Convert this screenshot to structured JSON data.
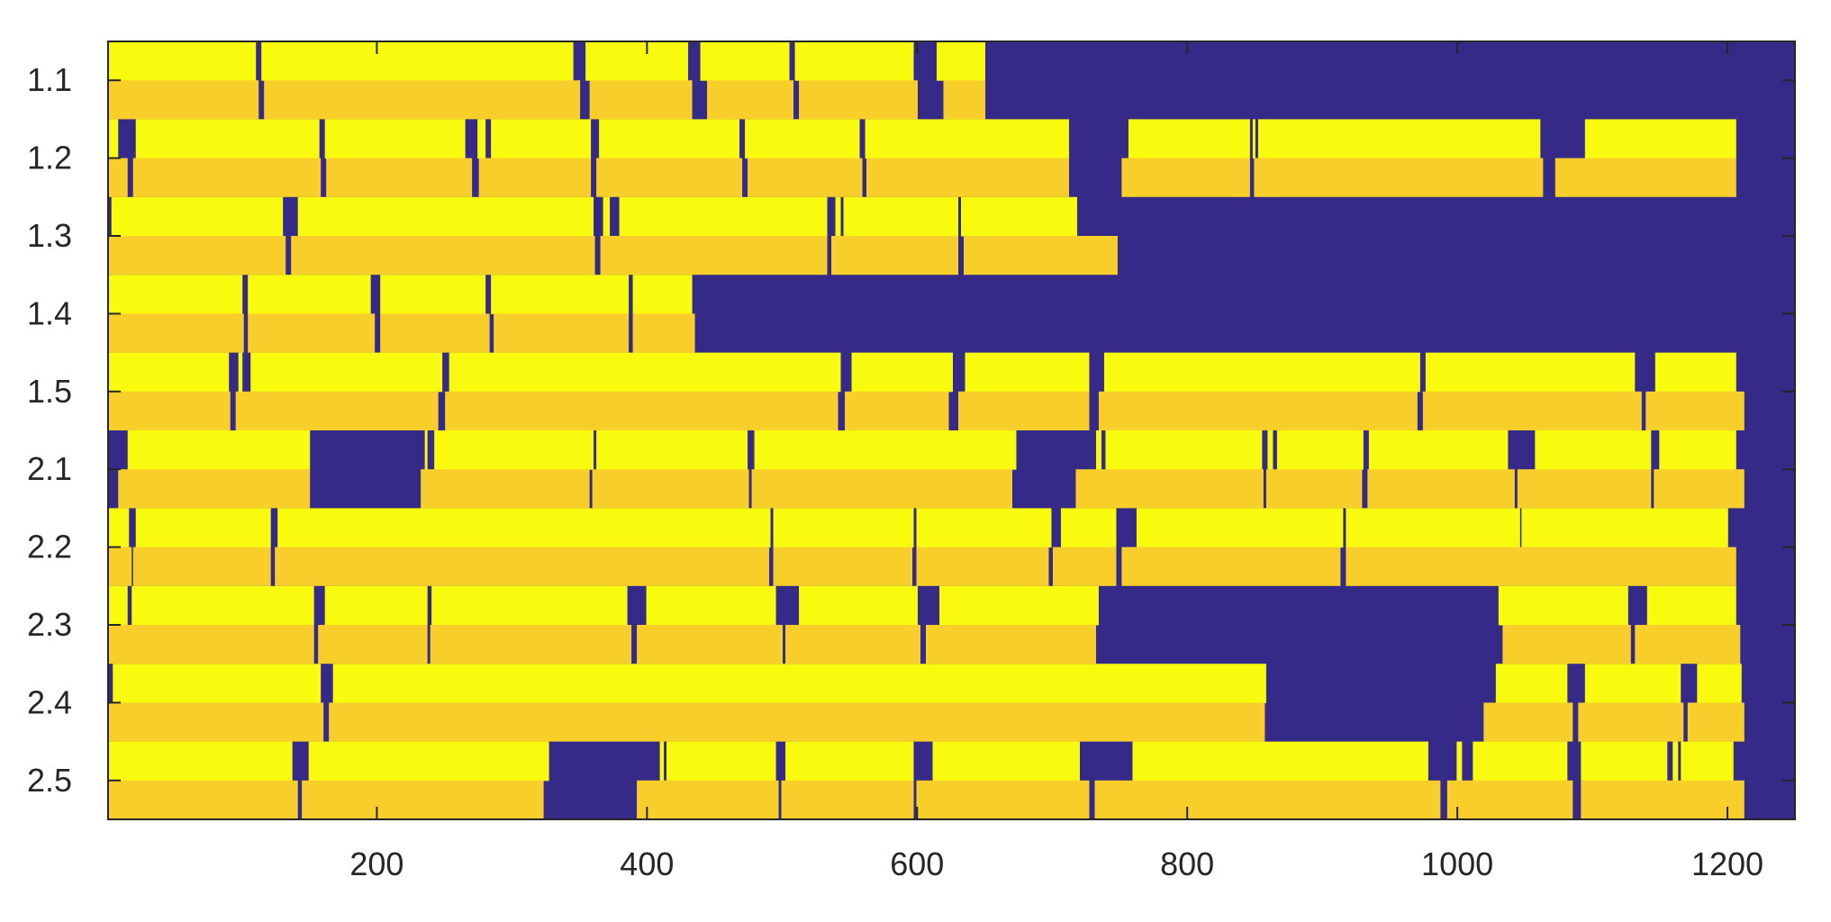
{
  "chart_data": {
    "type": "heatmap",
    "title": "",
    "xlabel": "",
    "ylabel": "",
    "xlim": [
      1,
      1250
    ],
    "x_ticks": [
      200,
      400,
      600,
      800,
      1000,
      1200
    ],
    "x_tick_labels": [
      "200",
      "400",
      "600",
      "800",
      "1000",
      "1200"
    ],
    "y_tick_labels": [
      "1.1",
      "1.2",
      "1.3",
      "1.4",
      "1.5",
      "2.1",
      "2.2",
      "2.3",
      "2.4",
      "2.5"
    ],
    "grid": false,
    "legend": "none",
    "colors": {
      "background": "#352a87",
      "upper_band": "#f9fb0e",
      "lower_band": "#f8cf2a",
      "axis": "#262626"
    },
    "rows": [
      {
        "label": "1.1",
        "upper": [
          [
            1,
            110
          ],
          [
            115,
            345
          ],
          [
            355,
            430
          ],
          [
            440,
            505
          ],
          [
            510,
            597
          ],
          [
            615,
            650
          ]
        ],
        "lower": [
          [
            1,
            112
          ],
          [
            117,
            350
          ],
          [
            358,
            433
          ],
          [
            445,
            508
          ],
          [
            513,
            600
          ],
          [
            620,
            650
          ]
        ]
      },
      {
        "label": "1.2",
        "upper": [
          [
            1,
            8
          ],
          [
            22,
            157
          ],
          [
            162,
            265
          ],
          [
            275,
            280
          ],
          [
            285,
            358
          ],
          [
            365,
            468
          ],
          [
            473,
            557
          ],
          [
            562,
            712
          ],
          [
            757,
            846
          ],
          [
            849,
            850
          ],
          [
            853,
            1061
          ],
          [
            1095,
            1206
          ]
        ],
        "lower": [
          [
            1,
            15
          ],
          [
            20,
            158
          ],
          [
            163,
            270
          ],
          [
            276,
            358
          ],
          [
            363,
            470
          ],
          [
            475,
            559
          ],
          [
            563,
            712
          ],
          [
            752,
            846
          ],
          [
            850,
            1063
          ],
          [
            1073,
            1206
          ]
        ]
      },
      {
        "label": "1.3",
        "upper": [
          [
            4,
            130
          ],
          [
            142,
            360
          ],
          [
            368,
            372
          ],
          [
            380,
            533
          ],
          [
            540,
            543
          ],
          [
            546,
            630
          ],
          [
            633,
            718
          ]
        ],
        "lower": [
          [
            1,
            132
          ],
          [
            137,
            361
          ],
          [
            366,
            533
          ],
          [
            537,
            630
          ],
          [
            635,
            748
          ]
        ]
      },
      {
        "label": "1.4",
        "upper": [
          [
            1,
            100
          ],
          [
            105,
            195
          ],
          [
            203,
            280
          ],
          [
            285,
            386
          ],
          [
            390,
            433
          ]
        ],
        "lower": [
          [
            1,
            101
          ],
          [
            105,
            198
          ],
          [
            203,
            283
          ],
          [
            287,
            386
          ],
          [
            390,
            435
          ]
        ]
      },
      {
        "label": "1.5",
        "upper": [
          [
            1,
            90
          ],
          [
            98,
            100
          ],
          [
            107,
            248
          ],
          [
            254,
            543
          ],
          [
            552,
            626
          ],
          [
            636,
            727
          ],
          [
            739,
            972
          ],
          [
            977,
            1131
          ],
          [
            1147,
            1206
          ]
        ],
        "lower": [
          [
            1,
            91
          ],
          [
            96,
            245
          ],
          [
            251,
            541
          ],
          [
            547,
            623
          ],
          [
            631,
            727
          ],
          [
            735,
            970
          ],
          [
            975,
            1136
          ],
          [
            1140,
            1212
          ]
        ]
      },
      {
        "label": "2.1",
        "upper": [
          [
            16,
            150
          ],
          [
            236,
            237
          ],
          [
            243,
            360
          ],
          [
            363,
            474
          ],
          [
            480,
            673
          ],
          [
            733,
            736
          ],
          [
            740,
            855
          ],
          [
            860,
            863
          ],
          [
            867,
            930
          ],
          [
            935,
            1037
          ],
          [
            1058,
            1143
          ],
          [
            1150,
            1206
          ]
        ],
        "lower": [
          [
            9,
            150
          ],
          [
            233,
            357
          ],
          [
            360,
            475
          ],
          [
            478,
            670
          ],
          [
            718,
            856
          ],
          [
            859,
            929
          ],
          [
            934,
            1042
          ],
          [
            1045,
            1143
          ],
          [
            1146,
            1212
          ]
        ]
      },
      {
        "label": "2.2",
        "upper": [
          [
            1,
            16
          ],
          [
            22,
            121
          ],
          [
            127,
            491
          ],
          [
            494,
            597
          ],
          [
            600,
            699
          ],
          [
            707,
            747
          ],
          [
            763,
            915
          ],
          [
            918,
            1046
          ],
          [
            1048,
            1200
          ]
        ],
        "lower": [
          [
            1,
            18
          ],
          [
            20,
            121
          ],
          [
            125,
            490
          ],
          [
            494,
            596
          ],
          [
            600,
            697
          ],
          [
            701,
            747
          ],
          [
            752,
            913
          ],
          [
            918,
            1206
          ]
        ]
      },
      {
        "label": "2.3",
        "upper": [
          [
            1,
            15
          ],
          [
            19,
            153
          ],
          [
            162,
            237
          ],
          [
            241,
            385
          ],
          [
            400,
            495
          ],
          [
            513,
            600
          ],
          [
            617,
            734
          ],
          [
            1031,
            1126
          ],
          [
            1141,
            1206
          ]
        ],
        "lower": [
          [
            1,
            153
          ],
          [
            157,
            237
          ],
          [
            240,
            388
          ],
          [
            393,
            500
          ],
          [
            503,
            602
          ],
          [
            607,
            732
          ],
          [
            1034,
            1128
          ],
          [
            1132,
            1209
          ]
        ]
      },
      {
        "label": "2.4",
        "upper": [
          [
            5,
            158
          ],
          [
            168,
            858
          ],
          [
            1029,
            1081
          ],
          [
            1095,
            1165
          ],
          [
            1178,
            1210
          ]
        ],
        "lower": [
          [
            1,
            160
          ],
          [
            165,
            857
          ],
          [
            1020,
            1085
          ],
          [
            1090,
            1167
          ],
          [
            1171,
            1212
          ]
        ]
      },
      {
        "label": "2.5",
        "upper": [
          [
            1,
            137
          ],
          [
            150,
            327
          ],
          [
            410,
            412
          ],
          [
            415,
            495
          ],
          [
            503,
            597
          ],
          [
            612,
            720
          ],
          [
            760,
            978
          ],
          [
            1000,
            1003
          ],
          [
            1012,
            1081
          ],
          [
            1092,
            1155
          ],
          [
            1160,
            1163
          ],
          [
            1166,
            1204
          ]
        ],
        "lower": [
          [
            1,
            141
          ],
          [
            145,
            323
          ],
          [
            393,
            497
          ],
          [
            500,
            597
          ],
          [
            600,
            727
          ],
          [
            732,
            987
          ],
          [
            993,
            1085
          ],
          [
            1092,
            1212
          ]
        ]
      }
    ]
  }
}
